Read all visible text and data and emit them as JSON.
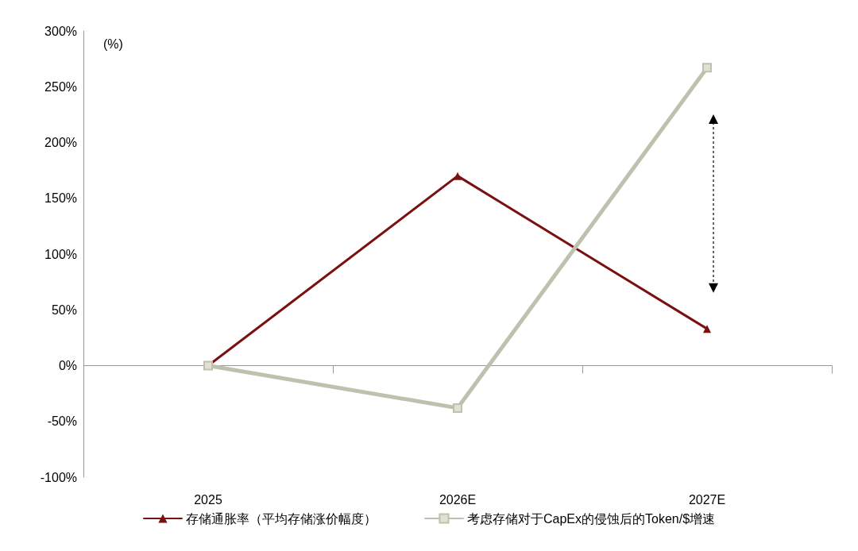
{
  "chart_data": {
    "type": "line",
    "ylabel": "(%)",
    "categories": [
      "2025",
      "2026E",
      "2027E"
    ],
    "series": [
      {
        "name": "存储通胀率（平均存储涨价幅度）",
        "color": "#7b1010",
        "marker": "triangle",
        "values": [
          0,
          170,
          33
        ]
      },
      {
        "name": "考虑存储对于CapEx的侵蚀后的Token/$增速",
        "color": "#c0c0ae",
        "marker": "square",
        "values": [
          0,
          -38,
          267
        ]
      }
    ],
    "ylim": [
      -100,
      300
    ],
    "yticks": [
      {
        "value": -100,
        "label": "-100%"
      },
      {
        "value": -50,
        "label": "-50%"
      },
      {
        "value": 0,
        "label": "0%"
      },
      {
        "value": 50,
        "label": "50%"
      },
      {
        "value": 100,
        "label": "100%"
      },
      {
        "value": 150,
        "label": "150%"
      },
      {
        "value": 200,
        "label": "200%"
      },
      {
        "value": 250,
        "label": "250%"
      },
      {
        "value": 300,
        "label": "300%"
      }
    ],
    "legend": "bottom",
    "line_style": "solid"
  }
}
